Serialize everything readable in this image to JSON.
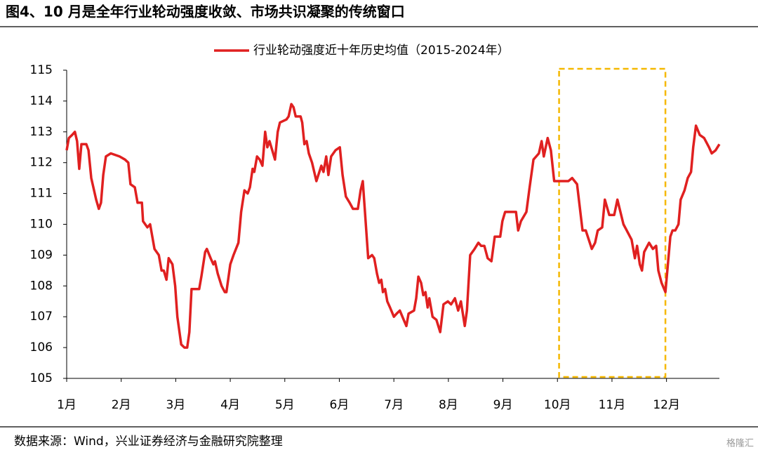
{
  "chart_data": {
    "type": "line",
    "title": "图4、10 月是全年行业轮动强度收敛、市场共识凝聚的传统窗口",
    "series": [
      {
        "name": "行业轮动强度近十年历史均值（2015-2024年）",
        "color": "#e02020",
        "x": [
          1.0,
          1.04,
          1.1,
          1.15,
          1.19,
          1.23,
          1.27,
          1.36,
          1.4,
          1.45,
          1.54,
          1.59,
          1.63,
          1.67,
          1.72,
          1.81,
          1.97,
          2.07,
          2.13,
          2.17,
          2.25,
          2.3,
          2.38,
          2.4,
          2.48,
          2.53,
          2.61,
          2.69,
          2.74,
          2.78,
          2.83,
          2.87,
          2.94,
          2.99,
          3.03,
          3.1,
          3.16,
          3.21,
          3.25,
          3.29,
          3.43,
          3.47,
          3.54,
          3.57,
          3.64,
          3.69,
          3.72,
          3.77,
          3.84,
          3.9,
          3.93,
          4.0,
          4.06,
          4.15,
          4.2,
          4.26,
          4.32,
          4.36,
          4.41,
          4.44,
          4.49,
          4.54,
          4.59,
          4.64,
          4.68,
          4.72,
          4.77,
          4.82,
          4.87,
          4.91,
          5.03,
          5.07,
          5.12,
          5.16,
          5.2,
          5.29,
          5.32,
          5.36,
          5.4,
          5.44,
          5.5,
          5.58,
          5.67,
          5.71,
          5.76,
          5.8,
          5.85,
          5.93,
          6.01,
          6.06,
          6.12,
          6.19,
          6.25,
          6.34,
          6.39,
          6.43,
          6.47,
          6.53,
          6.6,
          6.64,
          6.69,
          6.73,
          6.77,
          6.8,
          6.84,
          6.88,
          6.93,
          7.0,
          7.05,
          7.11,
          7.18,
          7.23,
          7.27,
          7.37,
          7.41,
          7.45,
          7.5,
          7.54,
          7.58,
          7.62,
          7.65,
          7.71,
          7.78,
          7.85,
          7.91,
          7.99,
          8.05,
          8.12,
          8.18,
          8.23,
          8.3,
          8.34,
          8.4,
          8.48,
          8.55,
          8.6,
          8.66,
          8.72,
          8.79,
          8.85,
          8.95,
          8.99,
          9.04,
          9.13,
          9.24,
          9.28,
          9.33,
          9.43,
          9.49,
          9.56,
          9.66,
          9.71,
          9.75,
          9.82,
          9.88,
          9.94,
          10.2,
          10.27,
          10.36,
          10.46,
          10.52,
          10.63,
          10.69,
          10.74,
          10.82,
          10.87,
          10.95,
          11.04,
          11.1,
          11.21,
          11.3,
          11.36,
          11.42,
          11.46,
          11.51,
          11.55,
          11.59,
          11.68,
          11.75,
          11.81,
          11.85,
          11.91,
          11.98,
          12.07,
          12.11,
          12.16,
          12.22,
          12.26,
          12.33,
          12.39,
          12.45,
          12.49,
          12.54,
          12.61,
          12.69,
          12.78,
          12.83,
          12.9,
          12.97
        ],
        "values": [
          112.4,
          112.8,
          112.9,
          113.0,
          112.7,
          111.8,
          112.6,
          112.6,
          112.4,
          111.5,
          110.8,
          110.5,
          110.7,
          111.6,
          112.2,
          112.3,
          112.2,
          112.1,
          112.0,
          111.3,
          111.2,
          110.7,
          110.7,
          110.1,
          109.9,
          110.0,
          109.2,
          109.0,
          108.5,
          108.5,
          108.2,
          108.9,
          108.7,
          108.0,
          107.0,
          106.1,
          106.0,
          106.0,
          106.5,
          107.9,
          107.9,
          108.3,
          109.1,
          109.2,
          108.9,
          108.7,
          108.8,
          108.4,
          108.0,
          107.8,
          107.8,
          108.7,
          109.0,
          109.4,
          110.4,
          111.1,
          111.0,
          111.2,
          111.8,
          111.7,
          112.2,
          112.1,
          111.9,
          113.0,
          112.5,
          112.7,
          112.4,
          112.1,
          113.0,
          113.3,
          113.4,
          113.5,
          113.9,
          113.8,
          113.5,
          113.5,
          113.3,
          112.6,
          112.7,
          112.3,
          112.0,
          111.4,
          111.9,
          111.7,
          112.2,
          111.6,
          112.2,
          112.4,
          112.5,
          111.6,
          110.9,
          110.7,
          110.5,
          110.5,
          111.1,
          111.4,
          110.4,
          108.9,
          109.0,
          108.9,
          108.4,
          108.1,
          108.2,
          107.8,
          107.9,
          107.5,
          107.3,
          107.0,
          107.1,
          107.2,
          106.9,
          106.7,
          107.1,
          107.2,
          107.6,
          108.3,
          108.1,
          107.7,
          107.8,
          107.3,
          107.6,
          107.0,
          106.9,
          106.5,
          107.4,
          107.5,
          107.4,
          107.6,
          107.2,
          107.5,
          106.7,
          107.2,
          109.0,
          109.2,
          109.4,
          109.3,
          109.3,
          108.9,
          108.8,
          109.6,
          109.6,
          110.1,
          110.4,
          110.4,
          110.4,
          109.8,
          110.1,
          110.4,
          111.2,
          112.1,
          112.3,
          112.7,
          112.2,
          112.8,
          112.4,
          111.4,
          111.4,
          111.5,
          111.3,
          109.8,
          109.8,
          109.2,
          109.4,
          109.8,
          109.9,
          110.8,
          110.3,
          110.3,
          110.8,
          110.0,
          109.7,
          109.5,
          108.9,
          109.3,
          108.7,
          108.5,
          109.1,
          109.4,
          109.2,
          109.3,
          108.5,
          108.1,
          107.8,
          109.6,
          109.8,
          109.8,
          110.0,
          110.8,
          111.1,
          111.5,
          111.7,
          112.5,
          113.2,
          112.9,
          112.8,
          112.5,
          112.3,
          112.4,
          112.6
        ]
      }
    ],
    "xlim": [
      1,
      12.97
    ],
    "xticks": [
      {
        "value": 1,
        "label": "1月"
      },
      {
        "value": 2,
        "label": "2月"
      },
      {
        "value": 3,
        "label": "3月"
      },
      {
        "value": 4,
        "label": "4月"
      },
      {
        "value": 5,
        "label": "5月"
      },
      {
        "value": 6,
        "label": "6月"
      },
      {
        "value": 7,
        "label": "7月"
      },
      {
        "value": 8,
        "label": "8月"
      },
      {
        "value": 9,
        "label": "9月"
      },
      {
        "value": 10,
        "label": "10月"
      },
      {
        "value": 11,
        "label": "11月"
      },
      {
        "value": 12,
        "label": "12月"
      }
    ],
    "ylim": [
      105,
      115
    ],
    "yticks": [
      105,
      106,
      107,
      108,
      109,
      110,
      111,
      112,
      113,
      114,
      115
    ],
    "grid": false,
    "legend": "top",
    "highlight": {
      "x": [
        10.03,
        11.98
      ],
      "color": "#f5b800"
    }
  },
  "source": "数据来源：Wind，兴业证券经济与金融研究院整理",
  "watermark": "格隆汇"
}
